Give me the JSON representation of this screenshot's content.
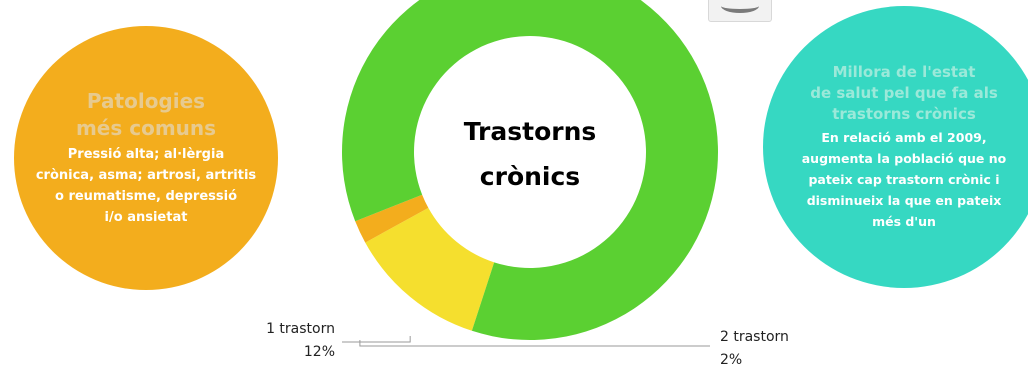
{
  "left_bubble": {
    "title_lines": [
      "Patologies",
      "més comuns"
    ],
    "body_lines": [
      "Pressió alta; al·lèrgia",
      "crònica, asma; artrosi, artritis",
      "o reumatisme, depressió",
      "i/o ansietat"
    ],
    "color": "#f3ad1d"
  },
  "right_bubble": {
    "title_lines": [
      "Millora de l'estat",
      "de salut pel que fa als",
      "trastorns crònics"
    ],
    "body_lines": [
      "En relació amb el 2009,",
      "augmenta la població que no",
      "pateix cap trastorn crònic i",
      "disminueix la que en pateix",
      "més d'un"
    ],
    "color": "#36d8c2"
  },
  "chart_data": {
    "type": "pie",
    "center_title_lines": [
      "Trastorns",
      "crònics"
    ],
    "slices": [
      {
        "label": "1 trastorn",
        "percent_text": "12%",
        "value": 12,
        "color": "#f5df2e"
      },
      {
        "label": "2 trastorn",
        "percent_text": "2%",
        "value": 2,
        "color": "#f3ad1d"
      },
      {
        "label": "",
        "percent_text": "",
        "value": 86,
        "color": "#5bd032"
      }
    ]
  }
}
